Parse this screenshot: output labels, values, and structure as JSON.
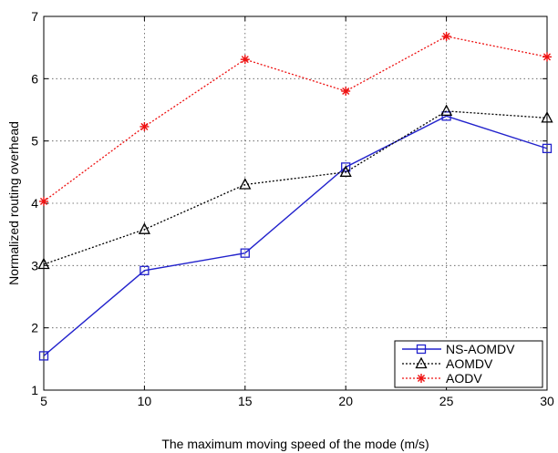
{
  "chart_data": {
    "type": "line",
    "title": "",
    "xlabel": "The maximum moving speed of the mode (m/s)",
    "ylabel": "Normalized routing overhead",
    "x": [
      5,
      10,
      15,
      20,
      25,
      30
    ],
    "xlim": [
      5,
      30
    ],
    "ylim": [
      1,
      7
    ],
    "xticks": [
      5,
      10,
      15,
      20,
      25,
      30
    ],
    "yticks": [
      1,
      2,
      3,
      4,
      5,
      6,
      7
    ],
    "grid": true,
    "legend_position": "bottom-right",
    "series": [
      {
        "name": "NS-AOMDV",
        "values": [
          1.55,
          2.92,
          3.2,
          4.58,
          5.4,
          4.88
        ],
        "color": "#2222cc",
        "marker": "square",
        "line": "solid"
      },
      {
        "name": "AOMDV",
        "values": [
          3.02,
          3.58,
          4.3,
          4.5,
          5.48,
          5.37
        ],
        "color": "#000000",
        "marker": "triangle",
        "line": "dotted"
      },
      {
        "name": "AODV",
        "values": [
          4.03,
          5.23,
          6.31,
          5.8,
          6.68,
          6.35
        ],
        "color": "#ee1111",
        "marker": "star",
        "line": "dotted"
      }
    ]
  }
}
